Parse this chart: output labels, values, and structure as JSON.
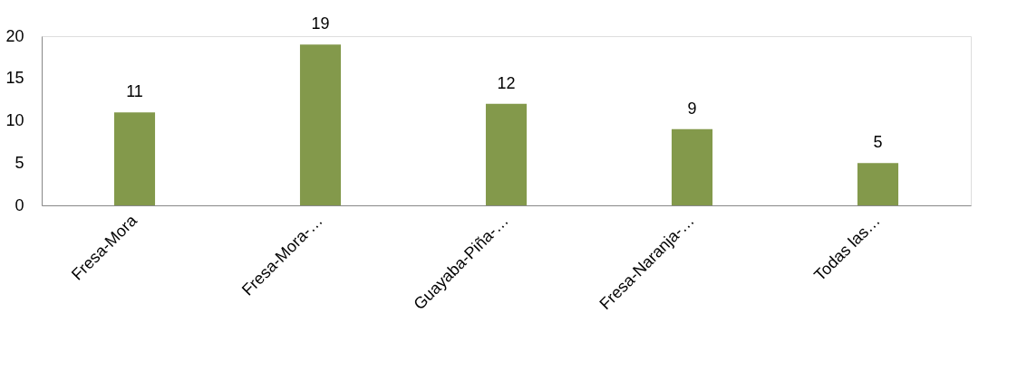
{
  "chart_data": {
    "type": "bar",
    "categories": [
      "Fresa-Mora",
      "Fresa-Mora-…",
      "Guayaba-Piña-…",
      "Fresa-Naranja-…",
      "Todas las…"
    ],
    "values": [
      11,
      19,
      12,
      9,
      5
    ],
    "color": "#83994b",
    "ylim": [
      0,
      20
    ],
    "yticks": [
      0,
      5,
      10,
      15,
      20
    ],
    "data_labels": true
  }
}
